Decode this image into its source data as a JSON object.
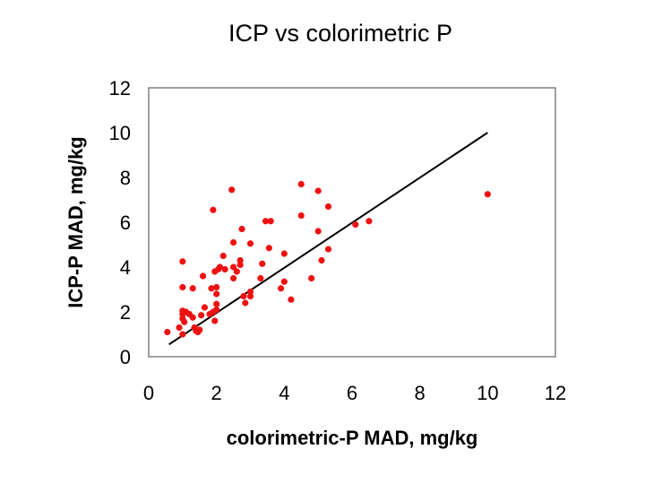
{
  "slide": {
    "title": "ICP vs colorimetric P"
  },
  "chart_data": {
    "type": "scatter",
    "title": "",
    "xlabel": "colorimetric-P MAD, mg/kg",
    "ylabel": "ICP-P MAD, mg/kg",
    "xlim": [
      0,
      12
    ],
    "ylim": [
      0,
      12
    ],
    "xticks": [
      "0",
      "2",
      "4",
      "6",
      "8",
      "10",
      "12"
    ],
    "yticks": [
      "0",
      "2",
      "4",
      "6",
      "8",
      "10",
      "12"
    ],
    "grid": false,
    "legend": "none",
    "point_color": "#ee1111",
    "line_color": "#000000",
    "series": [
      {
        "type": "scatter",
        "points": [
          [
            0.55,
            1.1
          ],
          [
            0.9,
            1.3
          ],
          [
            1.0,
            1.0
          ],
          [
            1.0,
            1.7
          ],
          [
            1.0,
            1.9
          ],
          [
            1.0,
            2.05
          ],
          [
            1.0,
            3.1
          ],
          [
            1.0,
            4.25
          ],
          [
            1.05,
            1.55
          ],
          [
            1.1,
            2.0
          ],
          [
            1.2,
            1.9
          ],
          [
            1.3,
            3.05
          ],
          [
            1.3,
            1.75
          ],
          [
            1.35,
            1.3
          ],
          [
            1.4,
            1.15
          ],
          [
            1.45,
            1.1
          ],
          [
            1.5,
            1.2
          ],
          [
            1.55,
            1.85
          ],
          [
            1.6,
            3.6
          ],
          [
            1.65,
            2.2
          ],
          [
            1.8,
            1.9
          ],
          [
            1.85,
            3.05
          ],
          [
            1.9,
            2.0
          ],
          [
            1.9,
            6.55
          ],
          [
            1.95,
            1.6
          ],
          [
            1.95,
            3.8
          ],
          [
            2.0,
            2.1
          ],
          [
            2.0,
            2.35
          ],
          [
            2.0,
            2.8
          ],
          [
            2.0,
            3.1
          ],
          [
            2.05,
            3.9
          ],
          [
            2.1,
            4.0
          ],
          [
            2.2,
            4.5
          ],
          [
            2.25,
            3.9
          ],
          [
            2.45,
            7.45
          ],
          [
            2.5,
            3.5
          ],
          [
            2.5,
            5.1
          ],
          [
            2.5,
            4.0
          ],
          [
            2.6,
            3.8
          ],
          [
            2.7,
            4.1
          ],
          [
            2.7,
            4.3
          ],
          [
            2.75,
            5.7
          ],
          [
            2.8,
            2.7
          ],
          [
            2.85,
            2.4
          ],
          [
            3.0,
            2.7
          ],
          [
            3.0,
            2.9
          ],
          [
            3.0,
            5.05
          ],
          [
            3.3,
            3.5
          ],
          [
            3.35,
            4.15
          ],
          [
            3.45,
            6.05
          ],
          [
            3.55,
            4.85
          ],
          [
            3.6,
            6.05
          ],
          [
            3.9,
            3.05
          ],
          [
            4.0,
            3.35
          ],
          [
            4.0,
            4.6
          ],
          [
            4.2,
            2.55
          ],
          [
            4.5,
            6.3
          ],
          [
            4.5,
            7.7
          ],
          [
            4.8,
            3.5
          ],
          [
            5.0,
            7.4
          ],
          [
            5.0,
            5.6
          ],
          [
            5.1,
            4.3
          ],
          [
            5.3,
            4.8
          ],
          [
            5.3,
            6.7
          ],
          [
            6.1,
            5.9
          ],
          [
            6.5,
            6.05
          ],
          [
            10.0,
            7.25
          ]
        ]
      },
      {
        "type": "line",
        "points": [
          [
            0.6,
            0.55
          ],
          [
            10.0,
            10.0
          ]
        ]
      }
    ]
  }
}
